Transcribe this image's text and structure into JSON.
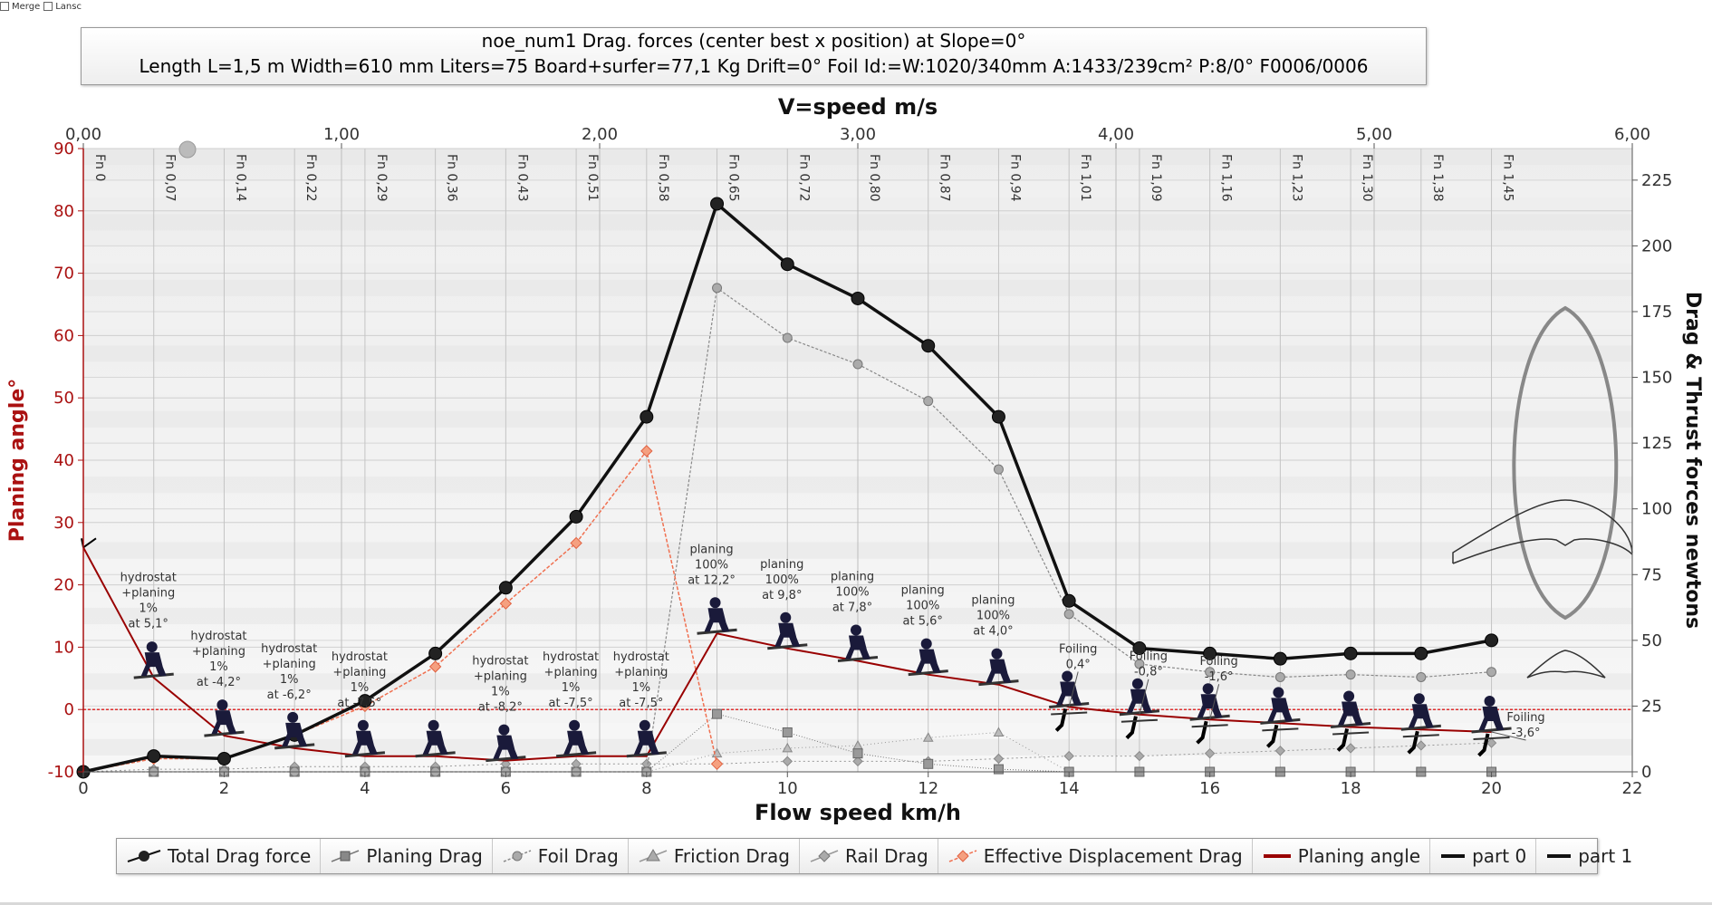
{
  "toolbar": {
    "merge_label": "Merge",
    "lansc_label": "Lansc"
  },
  "title": {
    "line1": "noe_num1 Drag. forces (center best x position) at  Slope=0°",
    "line2": "Length L=1,5 m Width=610 mm Liters=75 Board+surfer=77,1 Kg Drift=0° Foil Id:=W:1020/340mm A:1433/239cm² P:8/0° F0006/0006"
  },
  "colors": {
    "total": "#111111",
    "planing_drag": "#777777",
    "foil_drag": "#888888",
    "friction_drag": "#999999",
    "rail_drag": "#999999",
    "displacement": "#f07050",
    "planing_angle": "#990000",
    "zero_line": "#e03030",
    "axis_red": "#aa1111"
  },
  "chart_data": {
    "type": "line",
    "xlabel": "Flow speed km/h",
    "x2label": "V=speed m/s",
    "ylabel": "Planing angle°",
    "y2label": "Drag & Thrust forces newtons",
    "xlim": [
      0,
      22
    ],
    "x2lim": [
      0,
      6
    ],
    "ylim": [
      -10,
      90
    ],
    "y2lim": [
      0,
      237
    ],
    "x_ticks": [
      "0",
      "2",
      "4",
      "6",
      "8",
      "10",
      "12",
      "14",
      "16",
      "18",
      "20",
      "22"
    ],
    "x2_ticks": [
      "0,00",
      "1,00",
      "2,00",
      "3,00",
      "4,00",
      "5,00",
      "6,00"
    ],
    "y_ticks": [
      "-10",
      "0",
      "10",
      "20",
      "30",
      "40",
      "50",
      "60",
      "70",
      "80",
      "90"
    ],
    "y2_ticks": [
      "0",
      "25",
      "50",
      "75",
      "100",
      "125",
      "150",
      "175",
      "200",
      "225"
    ],
    "froude": [
      {
        "x": 0,
        "label": "Fn 0"
      },
      {
        "x": 1,
        "label": "Fn 0,07"
      },
      {
        "x": 2,
        "label": "Fn 0,14"
      },
      {
        "x": 3,
        "label": "Fn 0,22"
      },
      {
        "x": 4,
        "label": "Fn 0,29"
      },
      {
        "x": 5,
        "label": "Fn 0,36"
      },
      {
        "x": 6,
        "label": "Fn 0,43"
      },
      {
        "x": 7,
        "label": "Fn 0,51"
      },
      {
        "x": 8,
        "label": "Fn 0,58"
      },
      {
        "x": 9,
        "label": "Fn 0,65"
      },
      {
        "x": 10,
        "label": "Fn 0,72"
      },
      {
        "x": 11,
        "label": "Fn 0,80"
      },
      {
        "x": 12,
        "label": "Fn 0,87"
      },
      {
        "x": 13,
        "label": "Fn 0,94"
      },
      {
        "x": 14,
        "label": "Fn 1,01"
      },
      {
        "x": 15,
        "label": "Fn 1,09"
      },
      {
        "x": 16,
        "label": "Fn 1,16"
      },
      {
        "x": 17,
        "label": "Fn 1,23"
      },
      {
        "x": 18,
        "label": "Fn 1,30"
      },
      {
        "x": 19,
        "label": "Fn 1,38"
      },
      {
        "x": 20,
        "label": "Fn 1,45"
      }
    ],
    "series": [
      {
        "name": "Total Drag force",
        "axis": "right",
        "x": [
          0,
          1,
          2,
          3,
          4,
          5,
          6,
          7,
          8,
          9,
          10,
          11,
          12,
          13,
          14,
          15,
          16,
          17,
          18,
          19,
          20
        ],
        "values": [
          0,
          6,
          5,
          14,
          27,
          45,
          70,
          97,
          135,
          216,
          193,
          180,
          162,
          135,
          65,
          47,
          45,
          43,
          45,
          45,
          50
        ]
      },
      {
        "name": "Planing Drag",
        "axis": "right",
        "x": [
          0,
          1,
          2,
          3,
          4,
          5,
          6,
          7,
          8,
          9,
          10,
          11,
          12,
          13,
          14,
          15,
          16,
          17,
          18,
          19,
          20
        ],
        "values": [
          0,
          0,
          0,
          0,
          0,
          0,
          0,
          0,
          0,
          22,
          15,
          7,
          3,
          1,
          0,
          0,
          0,
          0,
          0,
          0,
          0
        ]
      },
      {
        "name": "Foil Drag",
        "axis": "right",
        "x": [
          0,
          1,
          2,
          3,
          4,
          5,
          6,
          7,
          8,
          9,
          10,
          11,
          12,
          13,
          14,
          15,
          16,
          17,
          18,
          19,
          20
        ],
        "values": [
          0,
          0,
          0,
          0,
          0,
          0,
          0,
          0,
          0,
          184,
          165,
          155,
          141,
          115,
          60,
          41,
          38,
          36,
          37,
          36,
          38
        ]
      },
      {
        "name": "Friction Drag",
        "axis": "right",
        "x": [
          0,
          1,
          2,
          3,
          4,
          5,
          6,
          7,
          8,
          9,
          10,
          11,
          12,
          13,
          14,
          15,
          16,
          17,
          18,
          19,
          20
        ],
        "values": [
          0,
          0,
          0,
          0,
          0,
          0,
          0,
          0,
          0,
          7,
          9,
          10,
          13,
          15,
          0,
          0,
          0,
          0,
          0,
          0,
          0
        ]
      },
      {
        "name": "Rail Drag",
        "axis": "right",
        "x": [
          0,
          1,
          2,
          3,
          4,
          5,
          6,
          7,
          8,
          9,
          10,
          11,
          12,
          13,
          14,
          15,
          16,
          17,
          18,
          19,
          20
        ],
        "values": [
          0,
          1,
          1,
          2,
          2,
          2,
          3,
          3,
          3,
          3,
          4,
          4,
          4,
          5,
          6,
          6,
          7,
          8,
          9,
          10,
          11
        ]
      },
      {
        "name": "Effective Displacement Drag",
        "axis": "right",
        "x": [
          0,
          1,
          2,
          3,
          4,
          5,
          6,
          7,
          8,
          9
        ],
        "values": [
          0,
          5,
          5,
          14,
          25,
          40,
          64,
          87,
          122,
          3
        ]
      },
      {
        "name": "Planing angle",
        "axis": "left",
        "x": [
          0,
          1,
          2,
          3,
          4,
          5,
          6,
          7,
          8,
          9,
          10,
          11,
          12,
          13,
          14,
          15,
          16,
          17,
          18,
          19,
          20
        ],
        "values": [
          26,
          5.1,
          -4.2,
          -6.2,
          -7.5,
          -7.5,
          -8.2,
          -7.5,
          -7.5,
          12.2,
          9.8,
          7.8,
          5.6,
          4.0,
          0.4,
          -0.8,
          -1.6,
          -2.2,
          -2.8,
          -3.2,
          -3.6
        ]
      }
    ],
    "annotations": [
      {
        "x": 1,
        "y": 5.1,
        "lines": [
          "hydrostat",
          "+planing",
          "1%",
          "at 5,1°"
        ]
      },
      {
        "x": 2,
        "y": -4.2,
        "lines": [
          "hydrostat",
          "+planing",
          "1%",
          "at -4,2°"
        ]
      },
      {
        "x": 3,
        "y": -6.2,
        "lines": [
          "hydrostat",
          "+planing",
          "1%",
          "at -6,2°"
        ]
      },
      {
        "x": 4,
        "y": -7.5,
        "lines": [
          "hydrostat",
          "+planing",
          "1%",
          "at -7,5°"
        ]
      },
      {
        "x": 6,
        "y": -8.2,
        "lines": [
          "hydrostat",
          "+planing",
          "1%",
          "at -8,2°"
        ]
      },
      {
        "x": 7,
        "y": -7.5,
        "lines": [
          "hydrostat",
          "+planing",
          "1%",
          "at -7,5°"
        ]
      },
      {
        "x": 8,
        "y": -7.5,
        "lines": [
          "hydrostat",
          "+planing",
          "1%",
          "at -7,5°"
        ]
      },
      {
        "x": 9,
        "y": 12.2,
        "lines": [
          "planing",
          "100%",
          "at 12,2°"
        ]
      },
      {
        "x": 10,
        "y": 9.8,
        "lines": [
          "planing",
          "100%",
          "at 9,8°"
        ]
      },
      {
        "x": 11,
        "y": 7.8,
        "lines": [
          "planing",
          "100%",
          "at 7,8°"
        ]
      },
      {
        "x": 12,
        "y": 5.6,
        "lines": [
          "planing",
          "100%",
          "at 5,6°"
        ]
      },
      {
        "x": 13,
        "y": 4.0,
        "lines": [
          "planing",
          "100%",
          "at 4,0°"
        ]
      },
      {
        "x": 14,
        "y": 0.4,
        "lines": [
          "Foiling",
          "0,4°"
        ]
      },
      {
        "x": 15,
        "y": -0.8,
        "lines": [
          "Foiling",
          "-0,8°"
        ]
      },
      {
        "x": 16,
        "y": -1.6,
        "lines": [
          "Foiling",
          "-1,6°"
        ]
      },
      {
        "x": 20,
        "y": -3.6,
        "lines": [
          "Foiling",
          "-3,6°"
        ]
      }
    ],
    "legend": {
      "placement": "bottom",
      "items": [
        "Total Drag force",
        "Planing Drag",
        "Foil Drag",
        "Friction Drag",
        "Rail Drag",
        "Effective Displacement Drag",
        "Planing angle",
        "part 0",
        "part 1"
      ]
    }
  }
}
